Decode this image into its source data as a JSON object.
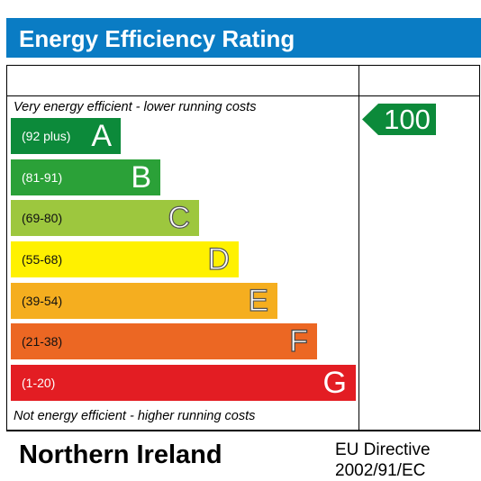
{
  "header": {
    "title": "Energy Efficiency Rating",
    "bar_color": "#0a7cc4"
  },
  "notes": {
    "top": "Very energy efficient - lower running costs",
    "bottom": "Not energy efficient - higher running costs"
  },
  "bands": [
    {
      "range": "(92 plus)",
      "letter": "A",
      "color": "#0c8a3a"
    },
    {
      "range": "(81-91)",
      "letter": "B",
      "color": "#2ba138"
    },
    {
      "range": "(69-80)",
      "letter": "C",
      "color": "#9dc73e"
    },
    {
      "range": "(55-68)",
      "letter": "D",
      "color": "#fff100"
    },
    {
      "range": "(39-54)",
      "letter": "E",
      "color": "#f5ae1f"
    },
    {
      "range": "(21-38)",
      "letter": "F",
      "color": "#ec6723"
    },
    {
      "range": "(1-20)",
      "letter": "G",
      "color": "#e31d23"
    }
  ],
  "current_rating": {
    "value": "100",
    "color": "#0c8a3a"
  },
  "footer": {
    "region": "Northern Ireland",
    "directive_line1": "EU Directive",
    "directive_line2": "2002/91/EC"
  }
}
